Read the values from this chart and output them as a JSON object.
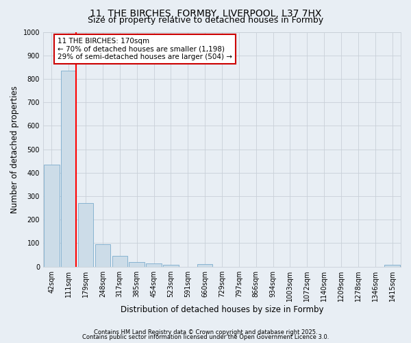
{
  "title_line1": "11, THE BIRCHES, FORMBY, LIVERPOOL, L37 7HX",
  "title_line2": "Size of property relative to detached houses in Formby",
  "xlabel": "Distribution of detached houses by size in Formby",
  "ylabel": "Number of detached properties",
  "bar_labels": [
    "42sqm",
    "111sqm",
    "179sqm",
    "248sqm",
    "317sqm",
    "385sqm",
    "454sqm",
    "523sqm",
    "591sqm",
    "660sqm",
    "729sqm",
    "797sqm",
    "866sqm",
    "934sqm",
    "1003sqm",
    "1072sqm",
    "1140sqm",
    "1209sqm",
    "1278sqm",
    "1346sqm",
    "1415sqm"
  ],
  "bar_values": [
    435,
    835,
    270,
    95,
    45,
    20,
    12,
    8,
    0,
    10,
    0,
    0,
    0,
    0,
    0,
    0,
    0,
    0,
    0,
    0,
    8
  ],
  "bar_color": "#ccdce8",
  "bar_edge_color": "#7aabcc",
  "red_line_index": 2,
  "annotation_text_line1": "11 THE BIRCHES: 170sqm",
  "annotation_text_line2": "← 70% of detached houses are smaller (1,198)",
  "annotation_text_line3": "29% of semi-detached houses are larger (504) →",
  "annotation_box_facecolor": "#ffffff",
  "annotation_border_color": "#cc0000",
  "ylim": [
    0,
    1000
  ],
  "yticks": [
    0,
    100,
    200,
    300,
    400,
    500,
    600,
    700,
    800,
    900,
    1000
  ],
  "grid_color": "#c8d0d8",
  "background_color": "#e8eef4",
  "footer_line1": "Contains HM Land Registry data © Crown copyright and database right 2025.",
  "footer_line2": "Contains public sector information licensed under the Open Government Licence 3.0.",
  "title_fontsize": 10,
  "subtitle_fontsize": 9,
  "axis_label_fontsize": 8.5,
  "tick_fontsize": 7,
  "annotation_fontsize": 7.5,
  "footer_fontsize": 6
}
